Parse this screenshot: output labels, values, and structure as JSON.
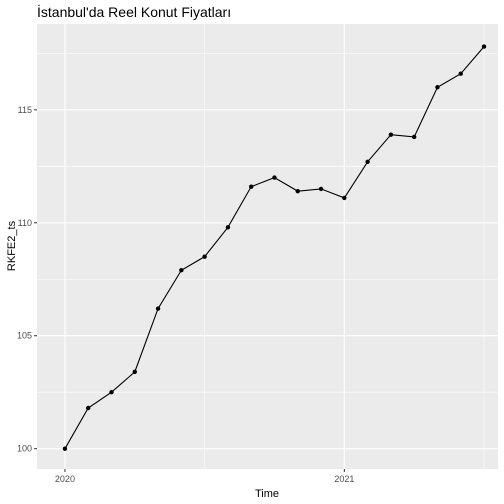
{
  "chart_data": {
    "type": "line",
    "title": "İstanbul'da Reel Konut Fiyatları",
    "xlabel": "Time",
    "ylabel": "RKFE2_ts",
    "x_ticks": [
      {
        "value": 2020,
        "label": "2020"
      },
      {
        "value": 2021,
        "label": "2021"
      }
    ],
    "y_ticks": [
      {
        "value": 100,
        "label": "100"
      },
      {
        "value": 105,
        "label": "105"
      },
      {
        "value": 110,
        "label": "110"
      },
      {
        "value": 115,
        "label": "115"
      }
    ],
    "xlim": [
      2019.9,
      2021.55
    ],
    "ylim": [
      99.1,
      118.8
    ],
    "x": [
      2020.0,
      2020.0833,
      2020.1667,
      2020.25,
      2020.3333,
      2020.4167,
      2020.5,
      2020.5833,
      2020.6667,
      2020.75,
      2020.8333,
      2020.9167,
      2021.0,
      2021.0833,
      2021.1667,
      2021.25,
      2021.3333,
      2021.4167,
      2021.5
    ],
    "series": [
      {
        "values": [
          100.0,
          101.8,
          102.5,
          103.4,
          106.2,
          107.9,
          108.5,
          109.8,
          111.6,
          112.0,
          111.4,
          111.5,
          111.1,
          112.7,
          113.9,
          113.8,
          116.0,
          116.6,
          117.8
        ]
      }
    ],
    "grid": true,
    "colors": {
      "panel": "#ebebeb",
      "grid_major": "#ffffff",
      "line": "#000000",
      "tick_text": "#4d4d4d"
    }
  }
}
